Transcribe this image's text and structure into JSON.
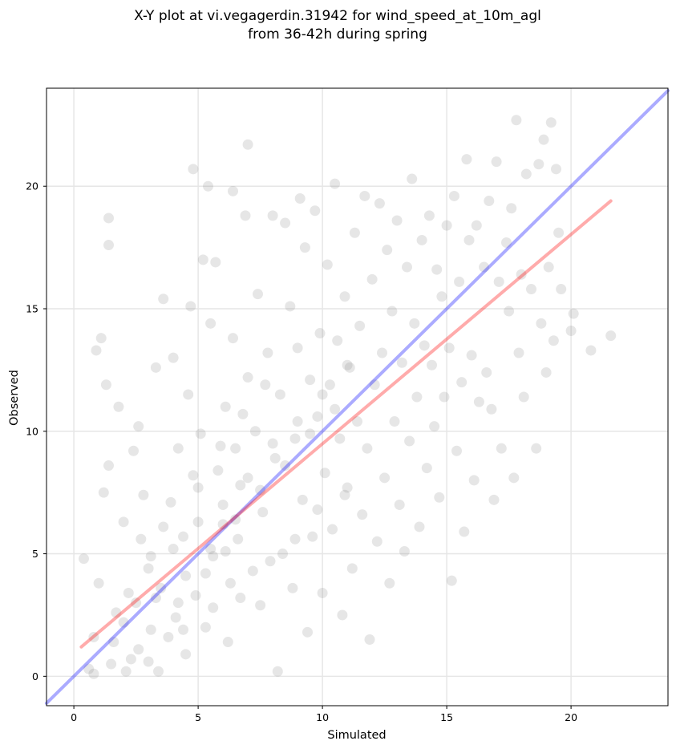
{
  "chart_data": {
    "type": "scatter",
    "title_line1": "X-Y plot at vi.vegagerdin.31942 for wind_speed_at_10m_agl",
    "title_line2": "from 36-42h during spring",
    "xlabel": "Simulated",
    "ylabel": "Observed",
    "xlim": [
      -1.1,
      23.9
    ],
    "ylim": [
      -1.2,
      24.0
    ],
    "xticks": [
      0,
      5,
      10,
      15,
      20
    ],
    "yticks": [
      0,
      5,
      10,
      15,
      20
    ],
    "xtick_labels": [
      "0",
      "5",
      "10",
      "15",
      "20"
    ],
    "ytick_labels": [
      "0",
      "5",
      "10",
      "15",
      "20"
    ],
    "grid": true,
    "marker_color": "#808080",
    "marker_opacity": 0.2,
    "series": [
      {
        "values": [
          [
            0.4,
            4.8
          ],
          [
            0.6,
            0.3
          ],
          [
            0.8,
            0.1
          ],
          [
            0.8,
            1.6
          ],
          [
            0.9,
            13.3
          ],
          [
            1.0,
            3.8
          ],
          [
            1.1,
            13.8
          ],
          [
            1.2,
            7.5
          ],
          [
            1.3,
            11.9
          ],
          [
            1.4,
            8.6
          ],
          [
            1.4,
            18.7
          ],
          [
            1.4,
            17.6
          ],
          [
            1.5,
            0.5
          ],
          [
            1.7,
            2.6
          ],
          [
            1.8,
            11.0
          ],
          [
            2.0,
            6.3
          ],
          [
            2.1,
            0.2
          ],
          [
            2.2,
            3.4
          ],
          [
            2.4,
            9.2
          ],
          [
            2.6,
            10.2
          ],
          [
            2.6,
            1.1
          ],
          [
            2.8,
            7.4
          ],
          [
            3.0,
            0.6
          ],
          [
            3.1,
            4.9
          ],
          [
            3.3,
            3.2
          ],
          [
            3.3,
            12.6
          ],
          [
            3.6,
            15.4
          ],
          [
            3.6,
            6.1
          ],
          [
            3.8,
            1.6
          ],
          [
            4.0,
            13.0
          ],
          [
            4.1,
            2.4
          ],
          [
            4.2,
            9.3
          ],
          [
            4.4,
            5.7
          ],
          [
            4.5,
            0.9
          ],
          [
            4.6,
            11.5
          ],
          [
            4.7,
            15.1
          ],
          [
            4.8,
            20.7
          ],
          [
            4.9,
            3.3
          ],
          [
            5.0,
            7.7
          ],
          [
            5.1,
            9.9
          ],
          [
            5.2,
            17.0
          ],
          [
            5.3,
            2.0
          ],
          [
            5.4,
            20.0
          ],
          [
            5.5,
            14.4
          ],
          [
            5.6,
            4.9
          ],
          [
            5.7,
            16.9
          ],
          [
            5.8,
            8.4
          ],
          [
            6.0,
            6.2
          ],
          [
            6.1,
            11.0
          ],
          [
            6.2,
            1.4
          ],
          [
            6.3,
            3.8
          ],
          [
            6.4,
            19.8
          ],
          [
            6.4,
            13.8
          ],
          [
            6.5,
            9.3
          ],
          [
            6.6,
            5.6
          ],
          [
            6.7,
            7.8
          ],
          [
            6.9,
            18.8
          ],
          [
            7.0,
            21.7
          ],
          [
            7.0,
            12.2
          ],
          [
            7.2,
            4.3
          ],
          [
            7.3,
            10.0
          ],
          [
            7.4,
            15.6
          ],
          [
            7.5,
            2.9
          ],
          [
            7.6,
            6.7
          ],
          [
            7.8,
            13.2
          ],
          [
            8.0,
            18.8
          ],
          [
            8.1,
            8.9
          ],
          [
            8.2,
            0.2
          ],
          [
            8.3,
            11.5
          ],
          [
            8.4,
            5.0
          ],
          [
            8.5,
            18.5
          ],
          [
            8.7,
            15.1
          ],
          [
            8.8,
            3.6
          ],
          [
            8.9,
            9.7
          ],
          [
            9.0,
            13.4
          ],
          [
            9.1,
            19.5
          ],
          [
            9.2,
            7.2
          ],
          [
            9.3,
            17.5
          ],
          [
            9.4,
            1.8
          ],
          [
            9.5,
            12.1
          ],
          [
            9.6,
            5.7
          ],
          [
            9.7,
            19.0
          ],
          [
            9.8,
            10.6
          ],
          [
            9.9,
            14.0
          ],
          [
            10.0,
            3.4
          ],
          [
            10.1,
            8.3
          ],
          [
            10.2,
            16.8
          ],
          [
            10.3,
            11.9
          ],
          [
            10.4,
            6.0
          ],
          [
            10.5,
            20.1
          ],
          [
            10.6,
            13.7
          ],
          [
            10.7,
            9.7
          ],
          [
            10.8,
            2.5
          ],
          [
            10.9,
            15.5
          ],
          [
            11.0,
            7.7
          ],
          [
            11.1,
            12.6
          ],
          [
            11.2,
            4.4
          ],
          [
            11.3,
            18.1
          ],
          [
            11.4,
            10.4
          ],
          [
            11.5,
            14.3
          ],
          [
            11.6,
            6.6
          ],
          [
            11.7,
            19.6
          ],
          [
            11.8,
            9.3
          ],
          [
            11.9,
            1.5
          ],
          [
            12.0,
            16.2
          ],
          [
            12.1,
            11.9
          ],
          [
            12.2,
            5.5
          ],
          [
            12.3,
            19.3
          ],
          [
            12.4,
            13.2
          ],
          [
            12.5,
            8.1
          ],
          [
            12.6,
            17.4
          ],
          [
            12.7,
            3.8
          ],
          [
            12.8,
            14.9
          ],
          [
            12.9,
            10.4
          ],
          [
            13.0,
            18.6
          ],
          [
            13.1,
            7.0
          ],
          [
            13.2,
            12.8
          ],
          [
            13.3,
            5.1
          ],
          [
            13.4,
            16.7
          ],
          [
            13.5,
            9.6
          ],
          [
            13.6,
            20.3
          ],
          [
            13.7,
            14.4
          ],
          [
            13.8,
            11.4
          ],
          [
            13.9,
            6.1
          ],
          [
            14.0,
            17.8
          ],
          [
            14.1,
            13.5
          ],
          [
            14.2,
            8.5
          ],
          [
            14.3,
            18.8
          ],
          [
            14.4,
            12.7
          ],
          [
            14.5,
            10.2
          ],
          [
            14.6,
            16.6
          ],
          [
            14.7,
            7.3
          ],
          [
            14.8,
            15.5
          ],
          [
            14.9,
            11.4
          ],
          [
            15.0,
            18.4
          ],
          [
            15.1,
            13.4
          ],
          [
            15.2,
            3.9
          ],
          [
            15.3,
            19.6
          ],
          [
            15.4,
            9.2
          ],
          [
            15.5,
            16.1
          ],
          [
            15.6,
            12.0
          ],
          [
            15.7,
            5.9
          ],
          [
            15.8,
            21.1
          ],
          [
            15.9,
            17.8
          ],
          [
            16.0,
            13.1
          ],
          [
            16.1,
            8.0
          ],
          [
            16.2,
            18.4
          ],
          [
            16.3,
            11.2
          ],
          [
            16.5,
            16.7
          ],
          [
            16.6,
            12.4
          ],
          [
            16.7,
            19.4
          ],
          [
            16.8,
            10.9
          ],
          [
            16.9,
            7.2
          ],
          [
            17.0,
            21.0
          ],
          [
            17.1,
            16.1
          ],
          [
            17.2,
            9.3
          ],
          [
            17.4,
            17.7
          ],
          [
            17.5,
            14.9
          ],
          [
            17.6,
            19.1
          ],
          [
            17.7,
            8.1
          ],
          [
            17.8,
            22.7
          ],
          [
            17.9,
            13.2
          ],
          [
            18.0,
            16.4
          ],
          [
            18.1,
            11.4
          ],
          [
            18.2,
            20.5
          ],
          [
            18.4,
            15.8
          ],
          [
            18.6,
            9.3
          ],
          [
            18.7,
            20.9
          ],
          [
            18.8,
            14.4
          ],
          [
            18.9,
            21.9
          ],
          [
            19.0,
            12.4
          ],
          [
            19.1,
            16.7
          ],
          [
            19.2,
            22.6
          ],
          [
            19.3,
            13.7
          ],
          [
            19.4,
            20.7
          ],
          [
            19.5,
            18.1
          ],
          [
            19.6,
            15.8
          ],
          [
            20.0,
            14.1
          ],
          [
            20.1,
            14.8
          ],
          [
            20.8,
            13.3
          ],
          [
            21.6,
            13.9
          ],
          [
            2.0,
            2.2
          ],
          [
            2.5,
            3.0
          ],
          [
            3.0,
            4.4
          ],
          [
            3.5,
            3.6
          ],
          [
            4.0,
            5.2
          ],
          [
            4.5,
            4.1
          ],
          [
            5.0,
            6.3
          ],
          [
            5.5,
            5.2
          ],
          [
            6.0,
            7.0
          ],
          [
            6.5,
            6.4
          ],
          [
            7.0,
            8.1
          ],
          [
            7.5,
            7.6
          ],
          [
            8.0,
            9.5
          ],
          [
            8.5,
            8.6
          ],
          [
            9.0,
            10.4
          ],
          [
            9.5,
            9.9
          ],
          [
            10.0,
            11.5
          ],
          [
            10.5,
            10.9
          ],
          [
            11.0,
            12.7
          ],
          [
            3.1,
            1.9
          ],
          [
            4.2,
            3.0
          ],
          [
            5.3,
            4.2
          ],
          [
            6.1,
            5.1
          ],
          [
            2.7,
            5.6
          ],
          [
            3.9,
            7.1
          ],
          [
            4.8,
            8.2
          ],
          [
            5.9,
            9.4
          ],
          [
            6.8,
            10.7
          ],
          [
            7.7,
            11.9
          ],
          [
            1.6,
            1.4
          ],
          [
            2.3,
            0.7
          ],
          [
            3.4,
            0.2
          ],
          [
            4.4,
            1.9
          ],
          [
            5.6,
            2.8
          ],
          [
            6.7,
            3.2
          ],
          [
            7.9,
            4.7
          ],
          [
            8.9,
            5.6
          ],
          [
            9.8,
            6.8
          ],
          [
            10.9,
            7.4
          ]
        ]
      }
    ],
    "lines": [
      {
        "name": "",
        "color": "#0000ff",
        "opacity": 0.33,
        "width": 4,
        "x": [
          -1.1,
          23.9
        ],
        "y": [
          -1.1,
          23.9
        ]
      },
      {
        "name": "",
        "color": "#ff0000",
        "opacity": 0.33,
        "width": 4,
        "x": [
          0.3,
          21.6
        ],
        "y": [
          1.2,
          19.4
        ]
      }
    ]
  }
}
